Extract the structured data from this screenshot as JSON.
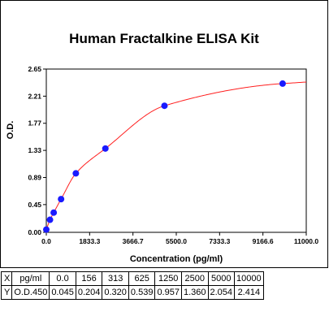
{
  "chart_data": {
    "type": "scatter",
    "title": "Human Fractalkine ELISA Kit",
    "xlabel": "Concentration (pg/ml)",
    "ylabel": "O.D.",
    "xlim": [
      0,
      11000
    ],
    "ylim": [
      0,
      2.65
    ],
    "x_ticks": [
      "0.0",
      "1833.3",
      "3666.7",
      "5500.0",
      "7333.3",
      "9166.6",
      "11000.0"
    ],
    "y_ticks": [
      "0.00",
      "0.45",
      "0.89",
      "1.33",
      "1.77",
      "2.21",
      "2.65"
    ],
    "x_tick_values": [
      0,
      1833.3,
      3666.7,
      5500.0,
      7333.3,
      9166.6,
      11000.0
    ],
    "y_tick_values": [
      0,
      0.45,
      0.89,
      1.33,
      1.77,
      2.21,
      2.65
    ],
    "points": {
      "x": [
        0,
        156,
        313,
        625,
        1250,
        2500,
        5000,
        10000
      ],
      "y": [
        0.045,
        0.204,
        0.32,
        0.539,
        0.957,
        1.36,
        2.054,
        2.414
      ]
    },
    "point_color": "#1a1aff",
    "fit_color": "#ff2020",
    "grid": false
  },
  "table": {
    "rows": [
      [
        "X",
        "pg/ml",
        "0.0",
        "156",
        "313",
        "625",
        "1250",
        "2500",
        "5000",
        "10000"
      ],
      [
        "Y",
        "O.D.450",
        "0.045",
        "0.204",
        "0.320",
        "0.539",
        "0.957",
        "1.360",
        "2.054",
        "2.414"
      ]
    ]
  }
}
